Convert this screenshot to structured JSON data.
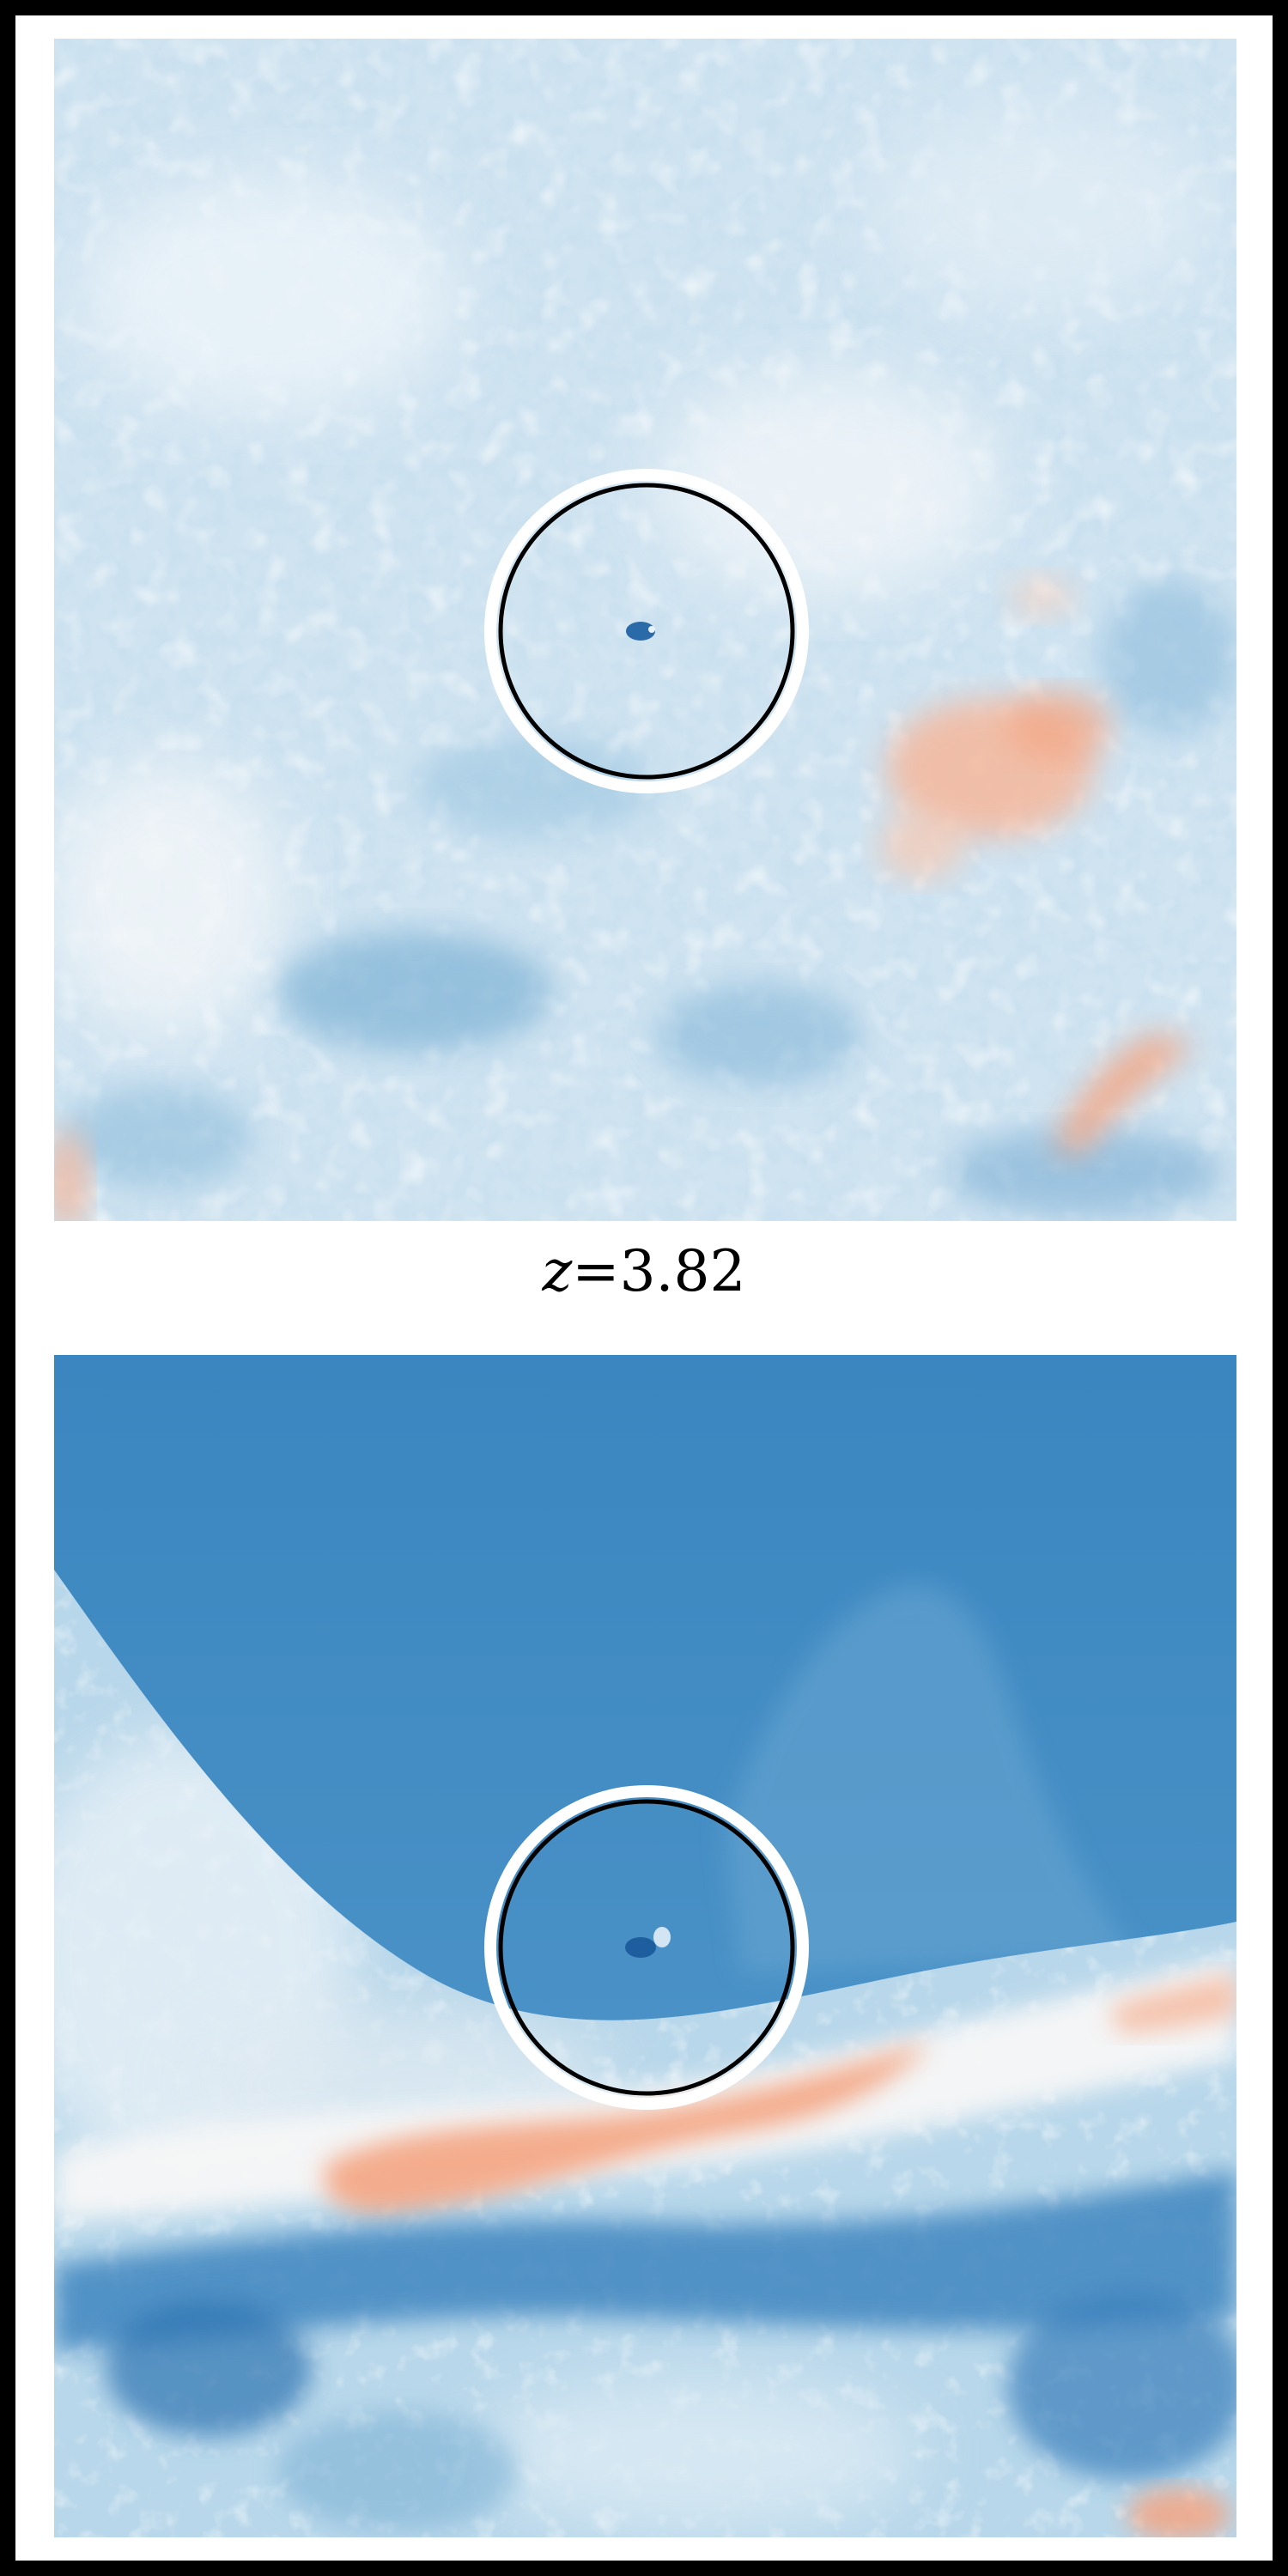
{
  "caption": {
    "variable": "z",
    "equals": "=",
    "value": "3.82"
  },
  "colors": {
    "frame": "#000000",
    "background": "#ffffff",
    "cmap_deep_blue": "#2166ac",
    "cmap_mid_blue": "#4393c3",
    "cmap_light_blue": "#92c5de",
    "cmap_pale_blue": "#d1e5f0",
    "cmap_white": "#f7f7f7",
    "cmap_pale_red": "#fddbc7",
    "cmap_light_red": "#f4a582",
    "circle_outline": "#000000",
    "circle_halo": "#ffffff"
  },
  "panels": [
    {
      "id": "top",
      "content": "field-map",
      "style": "mottled pale blue with red patches lower-right"
    },
    {
      "id": "bottom",
      "content": "field-map",
      "style": "deep blue upper region, light band with red filament across middle"
    }
  ]
}
